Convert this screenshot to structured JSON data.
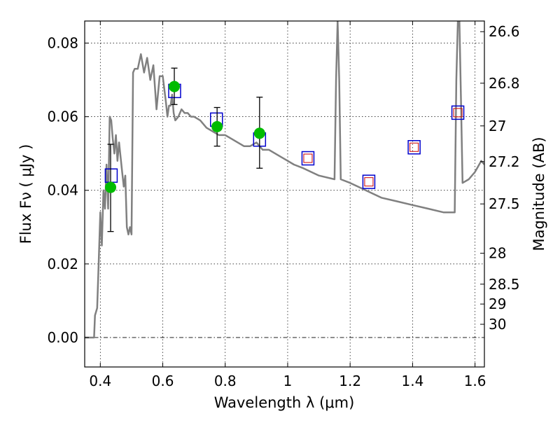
{
  "chart_data": {
    "type": "line",
    "xlabel": "Wavelength  λ (μm)",
    "ylabel": "Flux  Fν  ( μJy )",
    "y2label": "Magnitude (AB)",
    "xlim": [
      0.35,
      1.63
    ],
    "ylim": [
      -0.008,
      0.086
    ],
    "grid": true,
    "x_ticks": [
      0.4,
      0.6,
      0.8,
      1.0,
      1.2,
      1.4,
      1.6
    ],
    "x_tick_labels": [
      "0.4",
      "0.6",
      "0.8",
      "1",
      "1.2",
      "1.4",
      "1.6"
    ],
    "y_ticks": [
      0.0,
      0.02,
      0.04,
      0.06,
      0.08
    ],
    "y_tick_labels": [
      "0.00",
      "0.02",
      "0.04",
      "0.06",
      "0.08"
    ],
    "magnitude_ticks": [
      {
        "label": "26.6",
        "value": 0.0831
      },
      {
        "label": "26.8",
        "value": 0.0691
      },
      {
        "label": "27",
        "value": 0.0575
      },
      {
        "label": "27.2",
        "value": 0.0478
      },
      {
        "label": "27.5",
        "value": 0.0363
      },
      {
        "label": "28",
        "value": 0.0229
      },
      {
        "label": "28.5",
        "value": 0.0145
      },
      {
        "label": "29",
        "value": 0.0091
      },
      {
        "label": "30",
        "value": 0.0036
      }
    ],
    "colors": {
      "sed_line": "#808080",
      "model_points": "#0000cc",
      "predicted_points": "#cc0000",
      "observed_points": "#00bb00",
      "error_bars": "#000000"
    },
    "series": [
      {
        "kind": "sed",
        "x": [
          0.35,
          0.38,
          0.383,
          0.39,
          0.395,
          0.4,
          0.405,
          0.41,
          0.415,
          0.42,
          0.425,
          0.43,
          0.435,
          0.44,
          0.445,
          0.45,
          0.455,
          0.46,
          0.465,
          0.47,
          0.475,
          0.48,
          0.485,
          0.49,
          0.495,
          0.5,
          0.505,
          0.51,
          0.52,
          0.53,
          0.54,
          0.55,
          0.56,
          0.57,
          0.58,
          0.59,
          0.6,
          0.61,
          0.615,
          0.62,
          0.625,
          0.63,
          0.635,
          0.64,
          0.65,
          0.66,
          0.67,
          0.68,
          0.69,
          0.7,
          0.72,
          0.74,
          0.76,
          0.78,
          0.8,
          0.82,
          0.84,
          0.86,
          0.88,
          0.9,
          0.92,
          0.94,
          0.96,
          0.98,
          1.0,
          1.02,
          1.05,
          1.1,
          1.15,
          1.155,
          1.16,
          1.165,
          1.17,
          1.2,
          1.25,
          1.3,
          1.35,
          1.4,
          1.45,
          1.5,
          1.535,
          1.54,
          1.545,
          1.55,
          1.555,
          1.56,
          1.58,
          1.6,
          1.62,
          1.63
        ],
        "y": [
          0.0,
          0.0,
          0.006,
          0.008,
          0.021,
          0.034,
          0.025,
          0.04,
          0.035,
          0.047,
          0.035,
          0.06,
          0.059,
          0.054,
          0.05,
          0.055,
          0.048,
          0.053,
          0.049,
          0.045,
          0.041,
          0.044,
          0.03,
          0.028,
          0.03,
          0.028,
          0.072,
          0.073,
          0.073,
          0.077,
          0.072,
          0.076,
          0.07,
          0.074,
          0.062,
          0.071,
          0.071,
          0.064,
          0.06,
          0.063,
          0.063,
          0.066,
          0.061,
          0.059,
          0.06,
          0.062,
          0.061,
          0.061,
          0.06,
          0.06,
          0.059,
          0.057,
          0.056,
          0.055,
          0.055,
          0.054,
          0.053,
          0.052,
          0.052,
          0.053,
          0.051,
          0.051,
          0.05,
          0.049,
          0.048,
          0.047,
          0.046,
          0.044,
          0.043,
          0.07,
          0.086,
          0.07,
          0.043,
          0.042,
          0.04,
          0.038,
          0.037,
          0.036,
          0.035,
          0.034,
          0.034,
          0.07,
          0.086,
          0.086,
          0.065,
          0.042,
          0.043,
          0.045,
          0.048,
          0.047
        ]
      },
      {
        "kind": "model",
        "marker": "open-square",
        "x": [
          0.435,
          0.638,
          0.772,
          0.91,
          1.065,
          1.26,
          1.405,
          1.545
        ],
        "y": [
          0.044,
          0.067,
          0.0592,
          0.0538,
          0.0487,
          0.0423,
          0.0517,
          0.0611
        ]
      },
      {
        "kind": "predicted",
        "marker": "small-open-square",
        "x": [
          1.065,
          1.26,
          1.405,
          1.545
        ],
        "y": [
          0.0487,
          0.0423,
          0.0517,
          0.0611
        ]
      },
      {
        "kind": "observed",
        "marker": "filled-circle",
        "x": [
          0.433,
          0.637,
          0.774,
          0.91
        ],
        "y": [
          0.0408,
          0.0682,
          0.0573,
          0.0555
        ],
        "yerr_low": [
          0.0288,
          0.0633,
          0.052,
          0.046
        ],
        "yerr_high": [
          0.0525,
          0.0732,
          0.0625,
          0.0653
        ]
      }
    ]
  }
}
